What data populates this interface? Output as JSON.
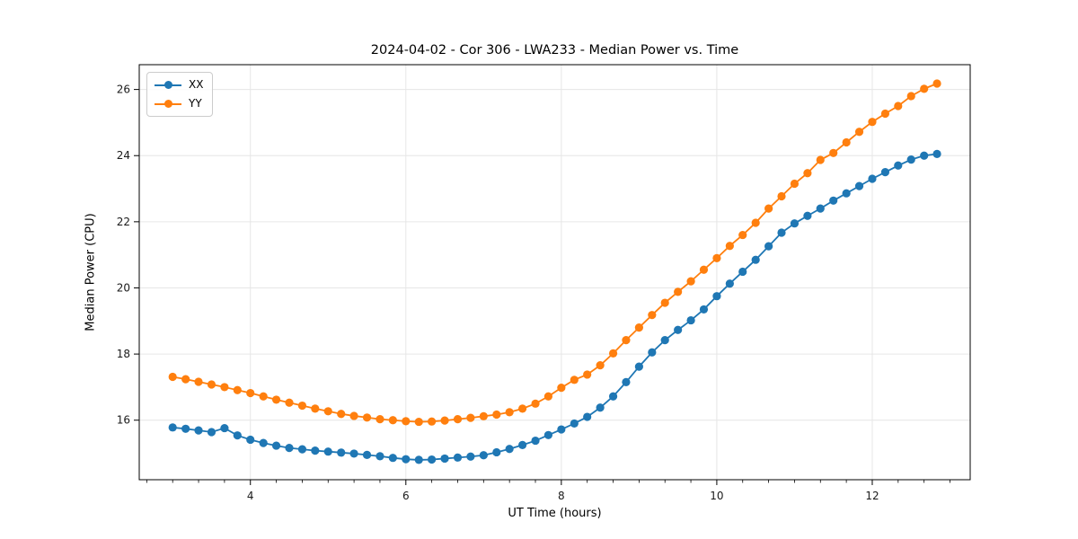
{
  "figure": {
    "background": "#ffffff",
    "spine_color": "#000000",
    "grid_color": "#e6e6e6",
    "tick_label_color": "#1a1a1a"
  },
  "chart_data": {
    "type": "line",
    "title": "2024-04-02 - Cor 306 - LWA233 - Median Power vs. Time",
    "xlabel": "UT Time (hours)",
    "ylabel": "Median Power (CPU)",
    "xlim": [
      2.57,
      13.26
    ],
    "ylim": [
      14.2,
      26.75
    ],
    "x_ticks": [
      4,
      6,
      8,
      10,
      12
    ],
    "y_ticks": [
      16,
      18,
      20,
      22,
      24,
      26
    ],
    "x_minor_step": 0.33333,
    "grid": true,
    "legend_position": "upper left",
    "marker": "circle",
    "x": [
      3.0,
      3.167,
      3.333,
      3.5,
      3.667,
      3.833,
      4.0,
      4.167,
      4.333,
      4.5,
      4.667,
      4.833,
      5.0,
      5.167,
      5.333,
      5.5,
      5.667,
      5.833,
      6.0,
      6.167,
      6.333,
      6.5,
      6.667,
      6.833,
      7.0,
      7.167,
      7.333,
      7.5,
      7.667,
      7.833,
      8.0,
      8.167,
      8.333,
      8.5,
      8.667,
      8.833,
      9.0,
      9.167,
      9.333,
      9.5,
      9.667,
      9.833,
      10.0,
      10.167,
      10.333,
      10.5,
      10.667,
      10.833,
      11.0,
      11.167,
      11.333,
      11.5,
      11.667,
      11.833,
      12.0,
      12.167,
      12.333,
      12.5,
      12.667,
      12.833
    ],
    "series": [
      {
        "name": "XX",
        "color": "#1f77b4",
        "values": [
          15.78,
          15.74,
          15.69,
          15.64,
          15.76,
          15.54,
          15.41,
          15.31,
          15.23,
          15.16,
          15.12,
          15.08,
          15.05,
          15.02,
          14.99,
          14.95,
          14.91,
          14.86,
          14.82,
          14.8,
          14.81,
          14.84,
          14.87,
          14.9,
          14.94,
          15.03,
          15.13,
          15.25,
          15.38,
          15.55,
          15.72,
          15.9,
          16.1,
          16.38,
          16.72,
          17.15,
          17.62,
          18.05,
          18.42,
          18.73,
          19.02,
          19.35,
          19.75,
          20.13,
          20.49,
          20.85,
          21.26,
          21.67,
          21.95,
          22.18,
          22.4,
          22.64,
          22.86,
          23.08,
          23.3,
          23.5,
          23.7,
          23.88,
          24.0,
          24.05
        ]
      },
      {
        "name": "YY",
        "color": "#ff7f0e",
        "values": [
          17.31,
          17.24,
          17.16,
          17.08,
          17.0,
          16.91,
          16.82,
          16.72,
          16.62,
          16.53,
          16.44,
          16.35,
          16.27,
          16.19,
          16.13,
          16.08,
          16.03,
          16.0,
          15.97,
          15.95,
          15.96,
          15.99,
          16.03,
          16.07,
          16.12,
          16.17,
          16.24,
          16.35,
          16.5,
          16.72,
          16.98,
          17.22,
          17.38,
          17.66,
          18.02,
          18.42,
          18.8,
          19.18,
          19.55,
          19.88,
          20.2,
          20.55,
          20.9,
          21.27,
          21.6,
          21.97,
          22.4,
          22.77,
          23.15,
          23.47,
          23.87,
          24.08,
          24.4,
          24.72,
          25.02,
          25.27,
          25.5,
          25.8,
          26.02,
          26.18
        ]
      }
    ]
  }
}
